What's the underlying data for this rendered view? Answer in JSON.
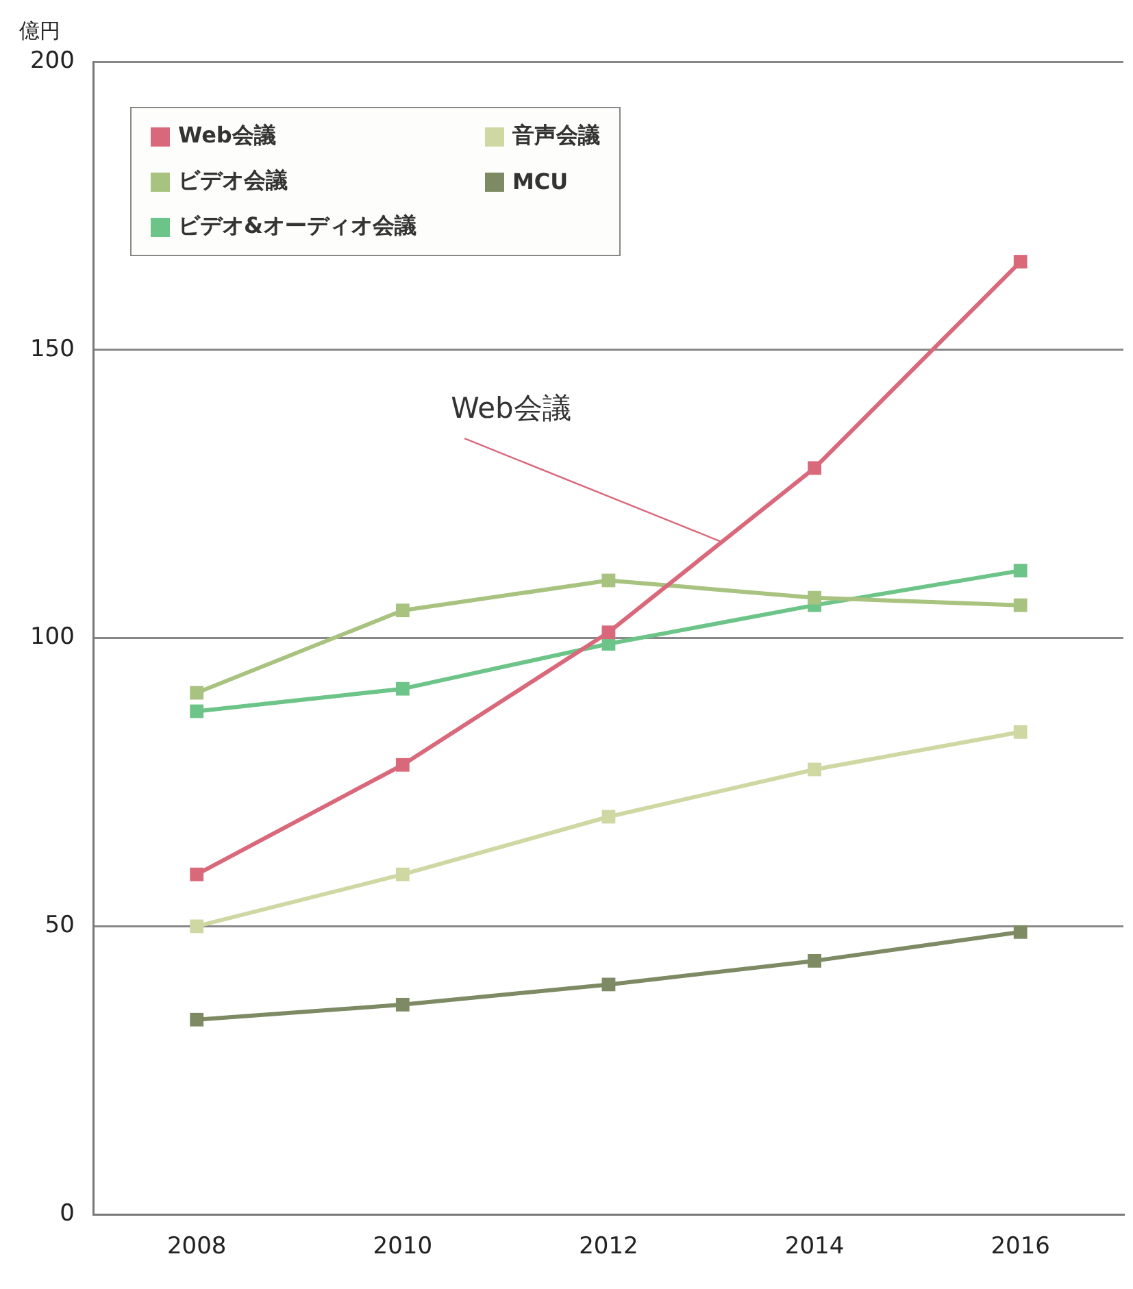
{
  "chart_data": {
    "type": "line",
    "ylabel": "億円",
    "categories": [
      "2008",
      "2010",
      "2012",
      "2014",
      "2016"
    ],
    "series": [
      {
        "name": "Web会議",
        "color": "#d9697a",
        "values": [
          59,
          78,
          101,
          129.5,
          165.3
        ]
      },
      {
        "name": "音声会議",
        "color": "#cfd8a3",
        "values": [
          50,
          59,
          69,
          77.2,
          83.7
        ]
      },
      {
        "name": "ビデオ会議",
        "color": "#a8c27f",
        "values": [
          90.5,
          104.8,
          110,
          107,
          105.7
        ]
      },
      {
        "name": "MCU",
        "color": "#7d8a64",
        "values": [
          33.8,
          36.4,
          39.9,
          44,
          49
        ]
      },
      {
        "name": "ビデオ&オーディオ会議",
        "color": "#6cc488",
        "values": [
          87.3,
          91.2,
          99,
          105.7,
          111.7
        ]
      }
    ],
    "ylim": [
      0,
      200
    ],
    "yticks": [
      0,
      50,
      100,
      150,
      200
    ],
    "grid": "y",
    "legend": "top left",
    "marker": "square",
    "line_style": "solid"
  }
}
